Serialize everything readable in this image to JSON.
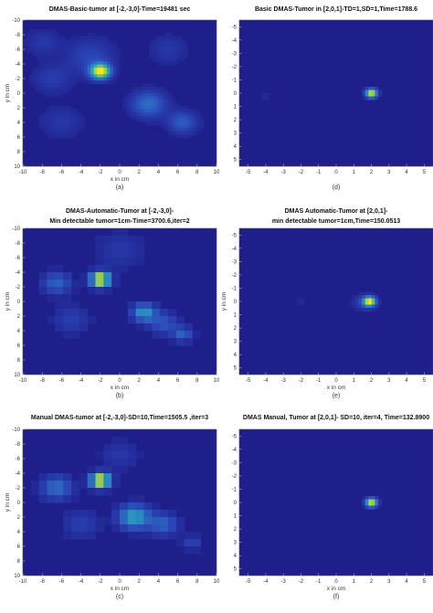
{
  "chart_data": [
    {
      "type": "heatmap",
      "panel": "(a)",
      "title": [
        "DMAS-Basic-tumor at [-2,-3,0]-Time=19481 sec"
      ],
      "xlabel": "x in cm",
      "ylabel": "y in cm",
      "xlim": [
        -10,
        10
      ],
      "ylim": [
        -10,
        10
      ],
      "xticks": [
        -10,
        -8,
        -6,
        -4,
        -2,
        0,
        2,
        4,
        6,
        8,
        10
      ],
      "yticks": [
        -10,
        -8,
        -6,
        -4,
        -2,
        0,
        2,
        4,
        6,
        8,
        10
      ],
      "y_reversed": true,
      "colormap": [
        "#1f1f8c",
        "#2c48b8",
        "#2a7cc6",
        "#27b2b0",
        "#9fd04a",
        "#f4e821"
      ],
      "blocky": false,
      "blobs": [
        {
          "x": -2,
          "y": -3,
          "r": 1.0,
          "v": 1.0
        },
        {
          "x": -3,
          "y": -5,
          "r": 2.5,
          "v": 0.18
        },
        {
          "x": -7,
          "y": -2,
          "r": 2.0,
          "v": 0.14
        },
        {
          "x": 3,
          "y": 1.5,
          "r": 1.8,
          "v": 0.35
        },
        {
          "x": 6.5,
          "y": 4,
          "r": 1.5,
          "v": 0.28
        },
        {
          "x": 5,
          "y": -6,
          "r": 2.0,
          "v": 0.12
        },
        {
          "x": -6,
          "y": 4,
          "r": 2.2,
          "v": 0.12
        },
        {
          "x": -8,
          "y": -7,
          "r": 1.8,
          "v": 0.12
        }
      ]
    },
    {
      "type": "heatmap",
      "panel": "(d)",
      "title": [
        "Basic DMAS-Tumor in [2,0,1]-TD=1,SD=1,Time=1788.6"
      ],
      "xlabel": "",
      "ylabel": "",
      "xlim": [
        -5.5,
        5.5
      ],
      "ylim": [
        -5.5,
        5.5
      ],
      "xticks": [
        -5,
        -4,
        -3,
        -2,
        -1,
        0,
        1,
        2,
        3,
        4,
        5
      ],
      "yticks": [
        -5,
        -4,
        -3,
        -2,
        -1,
        0,
        1,
        2,
        3,
        4,
        5
      ],
      "y_reversed": true,
      "colormap": [
        "#1f1f8c",
        "#2c48b8",
        "#2a7cc6",
        "#27b2b0",
        "#9fd04a",
        "#f4e821"
      ],
      "blocky": false,
      "blobs": [
        {
          "x": 2,
          "y": 0,
          "r": 0.32,
          "v": 1.0
        },
        {
          "x": -4,
          "y": 0.3,
          "r": 0.5,
          "v": 0.05
        }
      ]
    },
    {
      "type": "heatmap",
      "panel": "(b)",
      "title": [
        "DMAS-Automatic-Tumor at [-2,-3,0]-",
        "Min detectable tumor=1cm-Time=3700.6,iter=2"
      ],
      "xlabel": "x in cm",
      "ylabel": "y in cm",
      "xlim": [
        -10,
        10
      ],
      "ylim": [
        -10,
        10
      ],
      "xticks": [
        -10,
        -8,
        -6,
        -4,
        -2,
        0,
        2,
        4,
        6,
        8,
        10
      ],
      "yticks": [
        -10,
        -8,
        -6,
        -4,
        -2,
        0,
        2,
        4,
        6,
        8,
        10
      ],
      "y_reversed": true,
      "colormap": [
        "#1f1f8c",
        "#2c48b8",
        "#2a7cc6",
        "#27b2b0",
        "#9fd04a",
        "#f4e821"
      ],
      "blocky": true,
      "blobs": [
        {
          "x": -2,
          "y": -3,
          "r": 1.0,
          "v": 1.0
        },
        {
          "x": 2.5,
          "y": 1.5,
          "r": 1.2,
          "v": 0.5
        },
        {
          "x": -6.5,
          "y": -2.5,
          "r": 1.5,
          "v": 0.3
        },
        {
          "x": 6.5,
          "y": 4.5,
          "r": 1.0,
          "v": 0.3
        },
        {
          "x": -5,
          "y": 2.5,
          "r": 2.0,
          "v": 0.15
        },
        {
          "x": 0,
          "y": -7,
          "r": 2.5,
          "v": 0.12
        },
        {
          "x": 4.5,
          "y": 3,
          "r": 1.5,
          "v": 0.25
        }
      ]
    },
    {
      "type": "heatmap",
      "panel": "(e)",
      "title": [
        "DMAS Automatic-Tumor at [2,0,1]-",
        "min detectable tumor=1cm,Time=150.0513"
      ],
      "xlabel": "x in cm",
      "ylabel": "y in cm",
      "xlim": [
        -5.5,
        5.5
      ],
      "ylim": [
        -5.5,
        5.5
      ],
      "xticks": [
        -5,
        -4,
        -3,
        -2,
        -1,
        0,
        1,
        2,
        3,
        4,
        5
      ],
      "yticks": [
        -5,
        -4,
        -3,
        -2,
        -1,
        0,
        1,
        2,
        3,
        4,
        5
      ],
      "y_reversed": true,
      "colormap": [
        "#1f1f8c",
        "#2c48b8",
        "#2a7cc6",
        "#27b2b0",
        "#9fd04a",
        "#f4e821"
      ],
      "blocky": false,
      "blobs": [
        {
          "x": 1.9,
          "y": 0,
          "r": 0.35,
          "v": 1.0
        },
        {
          "x": 1.5,
          "y": 0.1,
          "r": 0.6,
          "v": 0.15
        },
        {
          "x": -2,
          "y": 0,
          "r": 0.4,
          "v": 0.06
        }
      ]
    },
    {
      "type": "heatmap",
      "panel": "(c)",
      "title": [
        "Manual DMAS-tumor at [-2,-3,0]-SD=10,Time=1505.5 ,iter=3"
      ],
      "xlabel": "x in cm",
      "ylabel": "y in cm",
      "xlim": [
        -10,
        10
      ],
      "ylim": [
        -10,
        10
      ],
      "xticks": [
        -10,
        -8,
        -6,
        -4,
        -2,
        0,
        2,
        4,
        6,
        8,
        10
      ],
      "yticks": [
        -10,
        -8,
        -6,
        -4,
        -2,
        0,
        2,
        4,
        6,
        8,
        10
      ],
      "y_reversed": true,
      "colormap": [
        "#1f1f8c",
        "#2c48b8",
        "#2a7cc6",
        "#27b2b0",
        "#9fd04a",
        "#f4e821"
      ],
      "blocky": true,
      "blobs": [
        {
          "x": -2,
          "y": -3,
          "r": 1.0,
          "v": 1.0
        },
        {
          "x": 1.5,
          "y": 2,
          "r": 1.6,
          "v": 0.55
        },
        {
          "x": -6.5,
          "y": -2,
          "r": 1.6,
          "v": 0.35
        },
        {
          "x": 4.5,
          "y": 3,
          "r": 1.5,
          "v": 0.3
        },
        {
          "x": -4,
          "y": 3,
          "r": 2.0,
          "v": 0.15
        },
        {
          "x": 0,
          "y": -6.5,
          "r": 2.0,
          "v": 0.12
        },
        {
          "x": 7.5,
          "y": 5.5,
          "r": 1.0,
          "v": 0.18
        }
      ]
    },
    {
      "type": "heatmap",
      "panel": "(f)",
      "title": [
        "DMAS Manual, Tumor at [2,0,1]- SD=10, iter=4, Time=132.8900"
      ],
      "xlabel": "x in cm",
      "ylabel": "",
      "xlim": [
        -5.5,
        5.5
      ],
      "ylim": [
        -5.5,
        5.5
      ],
      "xticks": [
        -5,
        -4,
        -3,
        -2,
        -1,
        0,
        1,
        2,
        3,
        4,
        5
      ],
      "yticks": [
        -5,
        -4,
        -3,
        -2,
        -1,
        0,
        1,
        2,
        3,
        4,
        5
      ],
      "y_reversed": true,
      "colormap": [
        "#1f1f8c",
        "#2c48b8",
        "#2a7cc6",
        "#27b2b0",
        "#9fd04a",
        "#f4e821"
      ],
      "blocky": false,
      "blobs": [
        {
          "x": 2,
          "y": 0,
          "r": 0.32,
          "v": 1.0
        }
      ]
    }
  ]
}
